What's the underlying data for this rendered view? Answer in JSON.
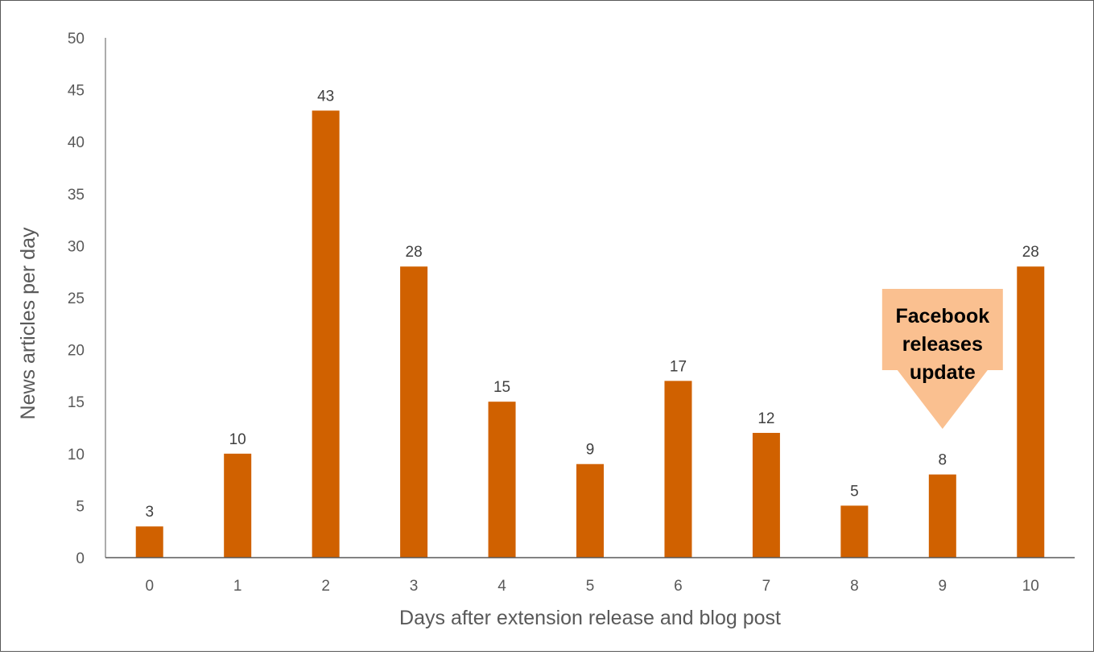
{
  "chart_data": {
    "type": "bar",
    "title": "",
    "xlabel": "Days after extension release and blog post",
    "ylabel": "News articles per day",
    "categories": [
      "0",
      "1",
      "2",
      "3",
      "4",
      "5",
      "6",
      "7",
      "8",
      "9",
      "10"
    ],
    "values": [
      3,
      10,
      43,
      28,
      15,
      9,
      17,
      12,
      5,
      8,
      28
    ],
    "ylim": [
      0,
      50
    ],
    "yticks": [
      0,
      5,
      10,
      15,
      20,
      25,
      30,
      35,
      40,
      45,
      50
    ],
    "grid": false,
    "legend": "none",
    "data_labels": true,
    "bar_color": "#D06100",
    "annotation": {
      "lines": [
        "Facebook",
        "releases",
        "update"
      ],
      "target_category": "9",
      "fill_color": "#FAC090"
    }
  }
}
